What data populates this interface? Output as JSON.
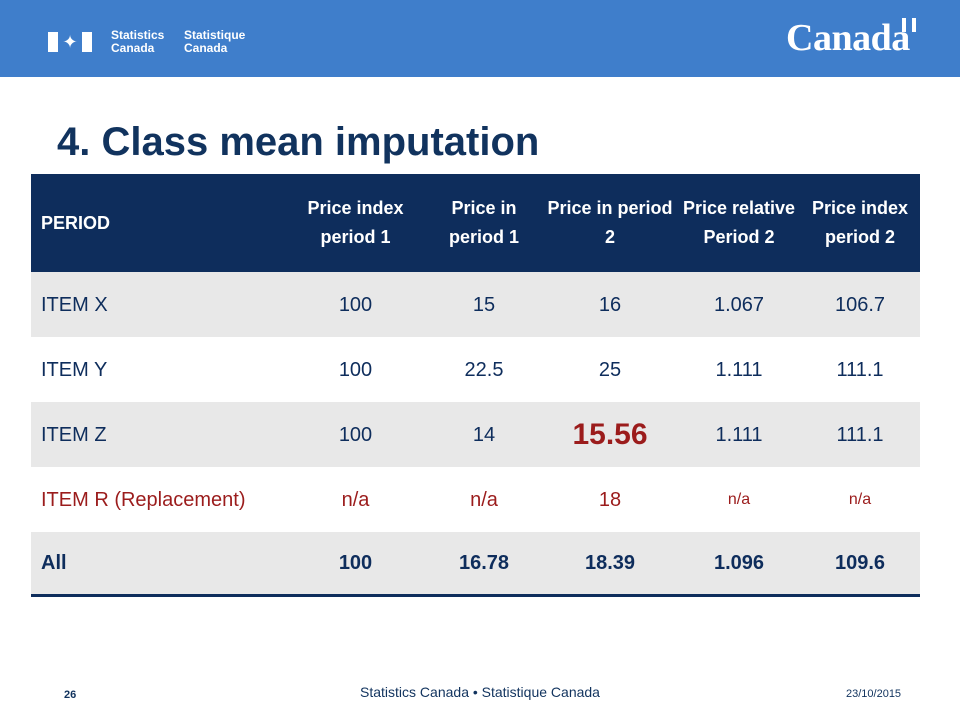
{
  "header": {
    "org_en": [
      "Statistics",
      "Canada"
    ],
    "org_fr": [
      "Statistique",
      "Canada"
    ],
    "wordmark": "Canada",
    "flag_icon": "canada-flag-icon"
  },
  "slide": {
    "title": "4. Class mean imputation"
  },
  "table": {
    "columns": [
      "PERIOD",
      "Price index period 1",
      "Price in period 1",
      "Price in period 2",
      "Price relative Period 2",
      "Price index period 2"
    ],
    "rows": [
      {
        "item": "ITEM X",
        "c1": "100",
        "c2": "15",
        "c3": "16",
        "c4": "1.067",
        "c5": "106.7"
      },
      {
        "item": "ITEM Y",
        "c1": "100",
        "c2": "22.5",
        "c3": "25",
        "c4": "1.111",
        "c5": "111.1"
      },
      {
        "item": "ITEM Z",
        "c1": "100",
        "c2": "14",
        "c3": "15.56",
        "c4": "1.111",
        "c5": "111.1"
      },
      {
        "item": "ITEM R (Replacement)",
        "c1": "n/a",
        "c2": "n/a",
        "c3": "18",
        "c4": "n/a",
        "c5": "n/a"
      },
      {
        "item": "All",
        "c1": "100",
        "c2": "16.78",
        "c3": "18.39",
        "c4": "1.096",
        "c5": "109.6"
      }
    ],
    "highlight_color": "#9b1c1c",
    "header_color": "#0e2d5c"
  },
  "footer": {
    "page": "26",
    "center": "Statistics Canada • Statistique Canada",
    "date": "23/10/2015"
  }
}
